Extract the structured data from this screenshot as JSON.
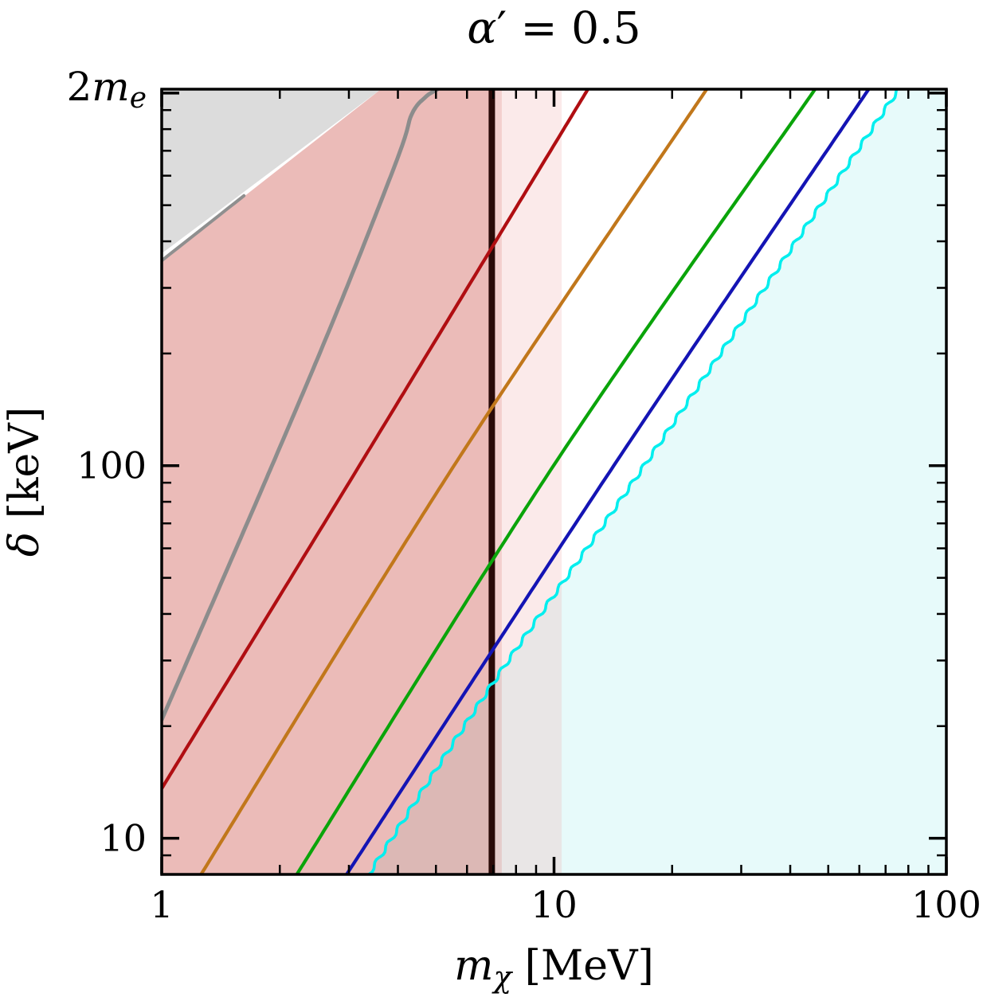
{
  "title": "alpha-prime = 0.5",
  "chart_data": {
    "type": "line",
    "xscale": "log",
    "yscale": "log",
    "xlim": [
      1,
      100
    ],
    "ylim": [
      8,
      1024
    ],
    "grid": false,
    "legend": "none",
    "title_parts": [
      {
        "t": "α",
        "i": true
      },
      {
        "t": "′ = 0.5"
      }
    ],
    "xlabel_parts": [
      {
        "t": "m",
        "i": true
      },
      {
        "t": "χ",
        "i": true,
        "sub": true
      },
      {
        "t": " [MeV]"
      }
    ],
    "ylabel_parts": [
      {
        "t": "δ",
        "i": true
      },
      {
        "t": " [keV]"
      }
    ],
    "top_axis_label_parts": [
      {
        "t": "2"
      },
      {
        "t": "m",
        "i": true
      },
      {
        "t": "e",
        "i": true,
        "sub": true
      }
    ],
    "top_axis_value_keV": 1022,
    "x_tick_labels": [
      {
        "v": 1,
        "label": "1"
      },
      {
        "v": 10,
        "label": "10"
      },
      {
        "v": 100,
        "label": "100"
      }
    ],
    "y_tick_labels": [
      {
        "v": 10,
        "label": "10"
      },
      {
        "v": 100,
        "label": "100"
      }
    ],
    "x_major_ticks": [
      1,
      10,
      100
    ],
    "x_minor_ticks": [
      2,
      3,
      4,
      5,
      6,
      7,
      8,
      9,
      20,
      30,
      40,
      50,
      60,
      70,
      80,
      90
    ],
    "y_major_ticks": [
      10,
      100,
      1000
    ],
    "y_minor_ticks": [
      9,
      20,
      30,
      40,
      50,
      60,
      70,
      80,
      90,
      200,
      300,
      400,
      500,
      600,
      700,
      800,
      900
    ],
    "vline": {
      "name": "dark-vertical-line",
      "m": 6.94,
      "color": "#2a0a08",
      "width": 8
    },
    "regions": [
      {
        "name": "cyan-shaded-region",
        "color": "rgba(175,240,238,0.30)",
        "boundary_line": "cyan-line",
        "close": "right"
      },
      {
        "name": "gray-excluded-region",
        "color": "#dcdcdc",
        "polygon": [
          [
            1,
            1024
          ],
          [
            1,
            371
          ],
          [
            3.62,
            1024
          ]
        ]
      },
      {
        "name": "red-excluded-region",
        "color": "rgba(205,85,78,0.40)",
        "polygon": [
          [
            1,
            8
          ],
          [
            1,
            354
          ],
          [
            3.62,
            1024
          ],
          [
            6.94,
            1024
          ],
          [
            6.94,
            8
          ]
        ]
      },
      {
        "name": "red-excluded-strip",
        "color": "rgba(205,85,78,0.22)",
        "polygon": [
          [
            6.94,
            8
          ],
          [
            6.94,
            1024
          ],
          [
            7.36,
            1024
          ],
          [
            7.36,
            8
          ]
        ]
      },
      {
        "name": "pink-band-region",
        "color": "rgba(242,178,178,0.28)",
        "polygon": [
          [
            6.94,
            8
          ],
          [
            6.94,
            1024
          ],
          [
            10.46,
            1024
          ],
          [
            10.46,
            8
          ]
        ]
      }
    ],
    "series": [
      {
        "name": "gray-boundary-segment",
        "color": "#8f8f8f",
        "width": 4,
        "points": [
          [
            1,
            355
          ],
          [
            1.62,
            530
          ]
        ]
      },
      {
        "name": "gray-line",
        "color": "#8c8c8c",
        "width": 5,
        "points": [
          [
            1,
            20.8
          ],
          [
            1.91,
            100
          ],
          [
            2.85,
            272
          ],
          [
            4.01,
            677
          ],
          [
            4.34,
            878
          ],
          [
            4.7,
            975
          ],
          [
            5.05,
            1024
          ]
        ]
      },
      {
        "name": "red-line",
        "color": "#b00e12",
        "width": 4.2,
        "points": [
          [
            1,
            13.6
          ],
          [
            3.19,
            100
          ],
          [
            12.2,
            1024
          ]
        ]
      },
      {
        "name": "orange-line",
        "color": "#c1771b",
        "width": 4.2,
        "points": [
          [
            1.26,
            8
          ],
          [
            5.56,
            100
          ],
          [
            24.5,
            1024
          ]
        ]
      },
      {
        "name": "green-line",
        "color": "#0aa40a",
        "width": 4.2,
        "points": [
          [
            2.21,
            8
          ],
          [
            9.97,
            100
          ],
          [
            46.3,
            1024
          ]
        ]
      },
      {
        "name": "blue-line",
        "color": "#1414b4",
        "width": 4.2,
        "points": [
          [
            2.96,
            8
          ],
          [
            14.2,
            100
          ],
          [
            63.4,
            1024
          ]
        ]
      },
      {
        "name": "cyan-line",
        "color": "#00eeee",
        "width": 3.6,
        "wavy": true,
        "points": [
          [
            3.37,
            8
          ],
          [
            6.97,
            26
          ],
          [
            17.2,
            102
          ],
          [
            75.6,
            1024
          ]
        ]
      }
    ]
  }
}
